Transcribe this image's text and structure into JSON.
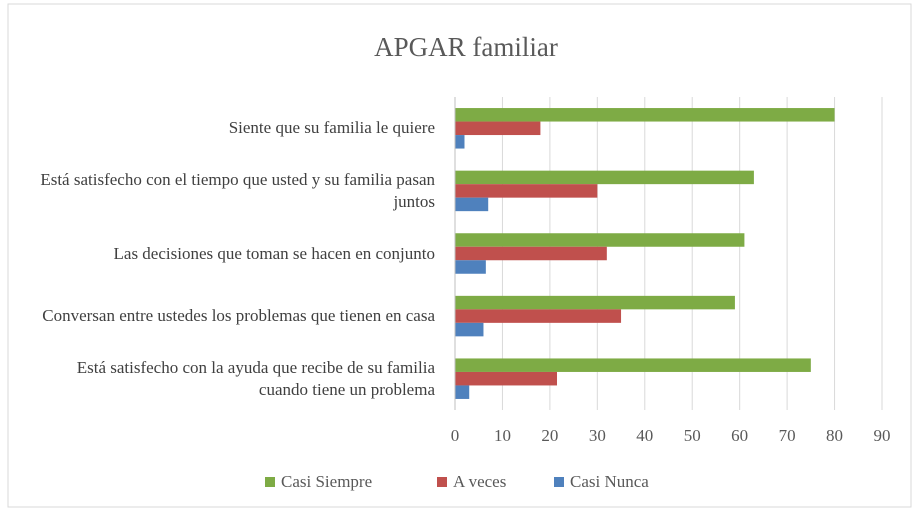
{
  "chart_data": {
    "type": "bar",
    "orientation": "horizontal",
    "title": "APGAR familiar",
    "categories": [
      "Siente que su familia le quiere",
      "Está satisfecho con el tiempo que usted y su familia pasan juntos",
      "Las decisiones que toman se hacen en conjunto",
      "Conversan entre ustedes los problemas que tienen en casa",
      "Está satisfecho con la ayuda que recibe de su familia cuando tiene un problema"
    ],
    "series": [
      {
        "name": "Casi Siempre",
        "color": "#7eab45",
        "values": [
          80,
          63,
          61,
          59,
          75
        ]
      },
      {
        "name": "A veces",
        "color": "#c0504d",
        "values": [
          18,
          30,
          32,
          35,
          21.5
        ]
      },
      {
        "name": "Casi Nunca",
        "color": "#4f81bd",
        "values": [
          2,
          7,
          6.5,
          6,
          3
        ]
      }
    ],
    "xlim": [
      0,
      90
    ],
    "xticks": [
      0,
      10,
      20,
      30,
      40,
      50,
      60,
      70,
      80,
      90
    ],
    "grid": true,
    "legend": "bottom"
  }
}
